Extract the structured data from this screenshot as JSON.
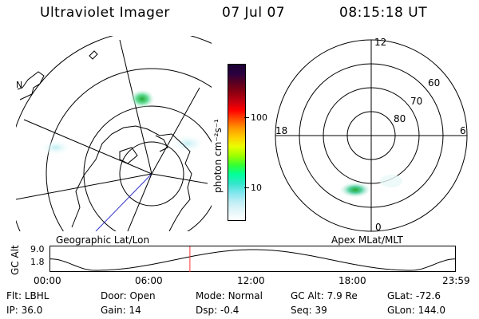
{
  "header": {
    "title": "Ultraviolet Imager",
    "date": "07 Jul 07",
    "time": "08:15:18 UT"
  },
  "left_map": {
    "corner_label": "N",
    "caption": "Geographic Lat/Lon"
  },
  "colorbar": {
    "unit_label": "photon cm⁻²s⁻¹",
    "ticks": [
      "100",
      "10"
    ],
    "colors": [
      "#1a0033",
      "#2a0040",
      "#5a0020",
      "#8a0010",
      "#c00010",
      "#ff0000",
      "#ff5000",
      "#ff9a00",
      "#ffd000",
      "#e6ff00",
      "#9aff00",
      "#33ff33",
      "#00ff99",
      "#33e6cc",
      "#80e6ee",
      "#bfeef5",
      "#e4f6fa",
      "#ffffff"
    ]
  },
  "right_dial": {
    "mlt_labels": {
      "top": "12",
      "left": "18",
      "right": "6",
      "bottom": "0"
    },
    "lat_labels": [
      "60",
      "70",
      "80"
    ],
    "caption": "Apex MLat/MLT"
  },
  "timeline": {
    "ylabel": "GC Alt",
    "y_ticks": [
      "9.0",
      "1.8"
    ],
    "x_ticks": [
      "00:00",
      "06:00",
      "12:00",
      "18:00",
      "23:59"
    ],
    "current_time_marker": "08:15:18"
  },
  "status": {
    "row1": [
      {
        "label": "Flt:",
        "value": "LBHL"
      },
      {
        "label": "Door:",
        "value": "Open"
      },
      {
        "label": "Mode:",
        "value": "Normal"
      },
      {
        "label": "GC Alt:",
        "value": "7.9 Re"
      },
      {
        "label": "GLat:",
        "value": "-72.6"
      }
    ],
    "row2": [
      {
        "label": "IP:",
        "value": "36.0"
      },
      {
        "label": "Gain:",
        "value": "14"
      },
      {
        "label": "Dsp:",
        "value": "-0.4"
      },
      {
        "label": "Seq:",
        "value": "39"
      },
      {
        "label": "GLon:",
        "value": "144.0"
      }
    ]
  }
}
